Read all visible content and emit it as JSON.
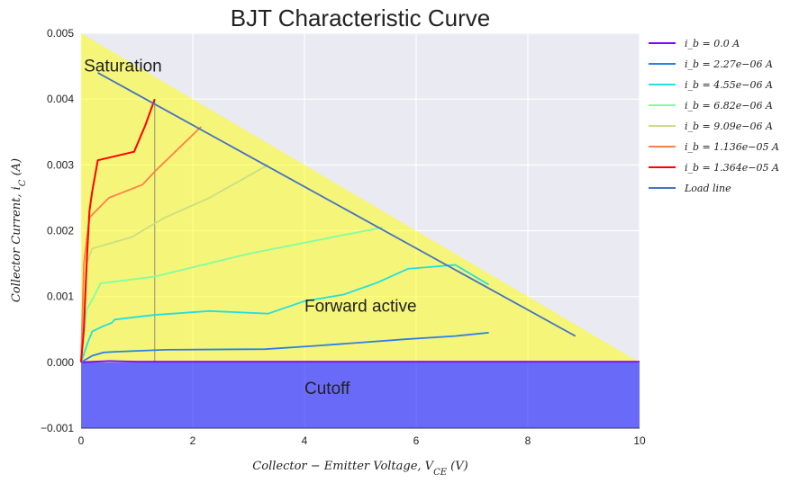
{
  "chart_data": {
    "type": "line",
    "title": "BJT Characteristic Curve",
    "xlabel": "Collector − Emitter Voltage, V",
    "xlabel_sub": "CE",
    "xlabel_unit": " (V)",
    "ylabel": "Collector Current, i",
    "ylabel_sub": "C",
    "ylabel_unit": " (A)",
    "xlim": [
      0,
      10
    ],
    "ylim": [
      -0.001,
      0.005
    ],
    "xticks": [
      "0",
      "2",
      "4",
      "6",
      "8",
      "10"
    ],
    "yticks": [
      "−0.001",
      "0.000",
      "0.001",
      "0.002",
      "0.003",
      "0.004",
      "0.005"
    ],
    "grid": true,
    "legend_position": "outside-right",
    "regions": [
      {
        "label": "Saturation",
        "x": 0.05,
        "y": 0.0045,
        "color": "#ffff00"
      },
      {
        "label": "Forward active",
        "x": 4.0,
        "y": 0.00085,
        "color": "#ffff00"
      },
      {
        "label": "Cutoff",
        "x": 4.0,
        "y": -0.0004,
        "color": "#0000ff"
      }
    ],
    "saturation_line_x": 1.32,
    "series": [
      {
        "name": "i_b = 0.0 A",
        "color": "#8000ff",
        "x": [
          0,
          0.5,
          1,
          10
        ],
        "y": [
          0,
          2e-05,
          1e-05,
          1e-05
        ]
      },
      {
        "name": "i_b = 2.27e−06 A",
        "color": "#2c7fe6",
        "x": [
          0,
          0.2,
          0.4,
          0.6,
          1.5,
          3.3,
          4.2,
          5.0,
          5.8,
          6.7,
          7.3
        ],
        "y": [
          0,
          0.0001,
          0.00015,
          0.00016,
          0.00019,
          0.0002,
          0.00025,
          0.0003,
          0.00035,
          0.0004,
          0.00045
        ]
      },
      {
        "name": "i_b = 4.55e−06 A",
        "color": "#20e0e0",
        "x": [
          0,
          0.12,
          0.2,
          0.4,
          0.55,
          0.6,
          1.3,
          2.3,
          3.35,
          4.0,
          4.7,
          5.3,
          5.85,
          6.7,
          7.3
        ],
        "y": [
          0,
          0.0003,
          0.00047,
          0.00055,
          0.0006,
          0.00065,
          0.00072,
          0.00078,
          0.00074,
          0.00093,
          0.00103,
          0.00121,
          0.00142,
          0.00148,
          0.00118
        ]
      },
      {
        "name": "i_b = 6.82e−06 A",
        "color": "#80ffa0",
        "x": [
          0,
          0.1,
          0.2,
          0.35,
          1.3,
          3.0,
          5.4
        ],
        "y": [
          0,
          0.0008,
          0.00095,
          0.0012,
          0.0013,
          0.00165,
          0.00205
        ]
      },
      {
        "name": "i_b = 9.09e−06 A",
        "color": "#c8e080",
        "x": [
          0,
          0.1,
          0.2,
          0.9,
          1.5,
          2.3,
          3.35
        ],
        "y": [
          0,
          0.0015,
          0.00173,
          0.0019,
          0.0022,
          0.0025,
          0.003
        ]
      },
      {
        "name": "i_b = 1.136e−05 A",
        "color": "#ff7f4a",
        "x": [
          0,
          0.05,
          0.15,
          0.5,
          1.1,
          1.32,
          2.15
        ],
        "y": [
          0,
          0.0015,
          0.0022,
          0.0025,
          0.0027,
          0.0029,
          0.00358
        ]
      },
      {
        "name": "i_b = 1.364e−05 A",
        "color": "#ff0000",
        "x": [
          0,
          0.05,
          0.1,
          0.15,
          0.2,
          0.3,
          0.95,
          1.15,
          1.32
        ],
        "y": [
          0,
          0.0005,
          0.0015,
          0.0023,
          0.0026,
          0.00307,
          0.0032,
          0.0036,
          0.004
        ]
      },
      {
        "name": "Load line",
        "color": "#4472c4",
        "x": [
          0.3,
          8.85
        ],
        "y": [
          0.0044,
          0.0004
        ]
      }
    ]
  }
}
